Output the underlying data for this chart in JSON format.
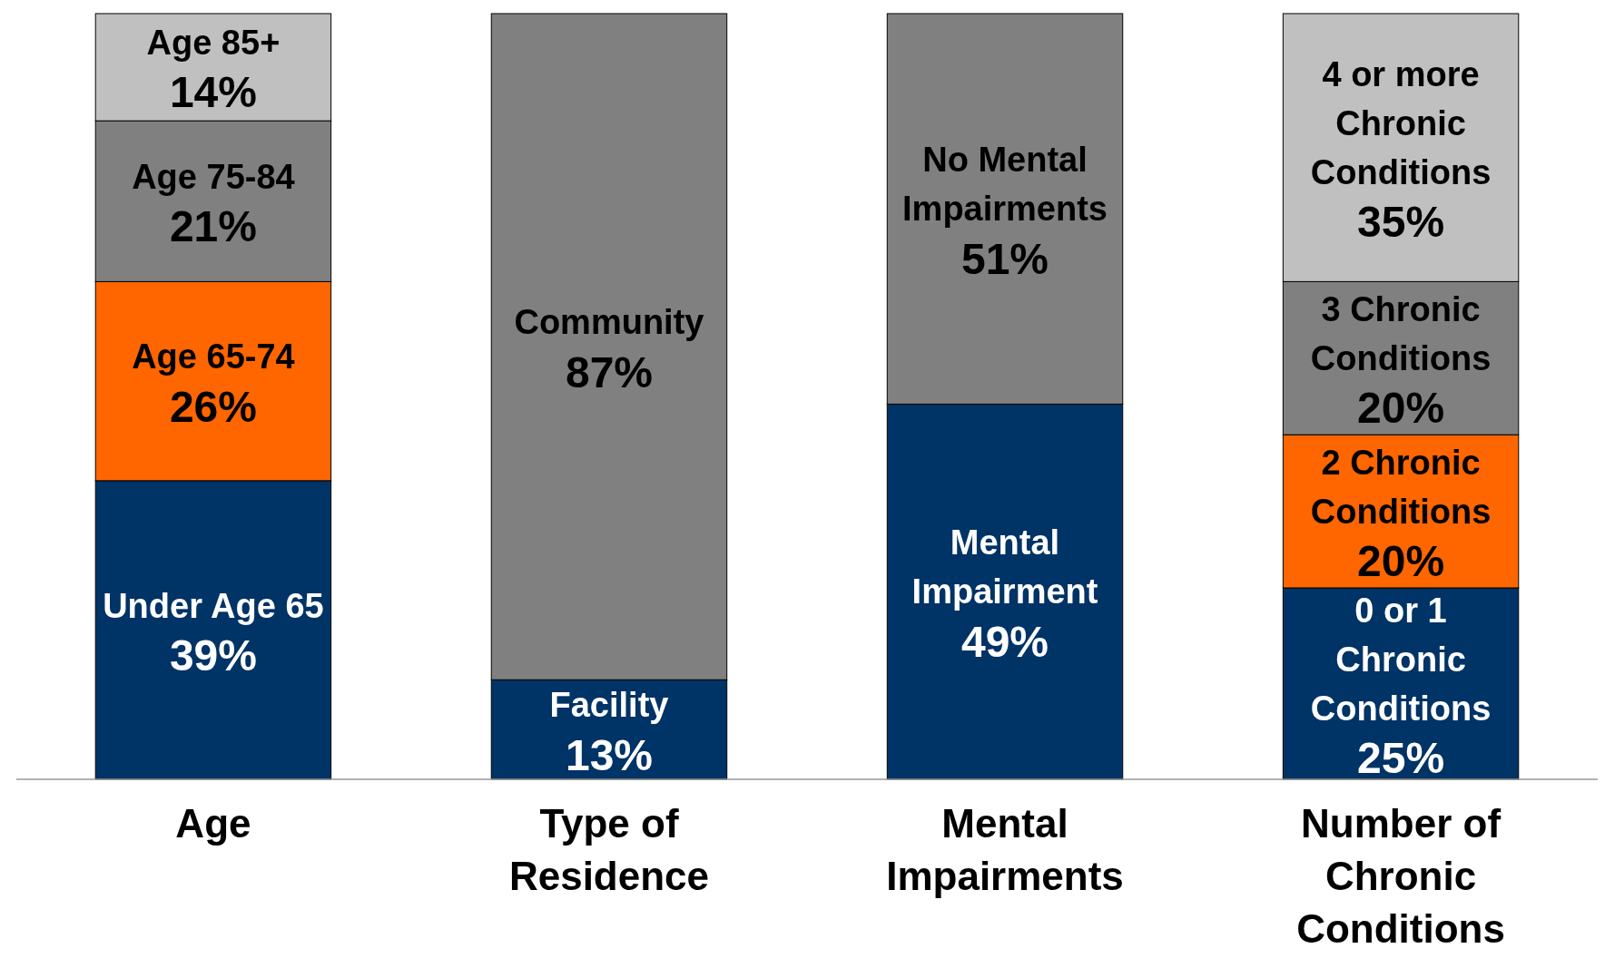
{
  "chart_data": {
    "type": "bar",
    "stacked": true,
    "categories": [
      "Age",
      "Type of Residence",
      "Mental Impairments",
      "Number of Chronic Conditions"
    ],
    "ylim": [
      0,
      100
    ],
    "tick_labels": "x",
    "series": [
      {
        "colors": [
          "#003366",
          "#003366",
          "#003366",
          "#003366"
        ],
        "values": [
          39,
          13,
          49,
          25
        ],
        "value_labels": [
          "Under Age 65 39%",
          "Facility 13%",
          "Mental Impairment 49%",
          "0 or 1 Chronic Conditions 25%"
        ]
      },
      {
        "colors": [
          "#ff6600",
          "#808080",
          "#808080",
          "#ff6600"
        ],
        "values": [
          26,
          87,
          51,
          20
        ],
        "value_labels": [
          "Age 65-74 26%",
          "Community 87%",
          "No Mental Impairments 51%",
          "2 Chronic Conditions 20%"
        ]
      },
      {
        "colors": [
          "#808080",
          null,
          null,
          "#808080"
        ],
        "values": [
          21,
          null,
          null,
          20
        ],
        "value_labels": [
          "Age 75-84 21%",
          null,
          null,
          "3 Chronic Conditions 20%"
        ]
      },
      {
        "colors": [
          "#c0c0c0",
          null,
          null,
          "#c0c0c0"
        ],
        "values": [
          14,
          null,
          null,
          35
        ],
        "value_labels": [
          "Age 85+ 14%",
          null,
          null,
          "4 or more Chronic Conditions 35%"
        ]
      }
    ]
  }
}
